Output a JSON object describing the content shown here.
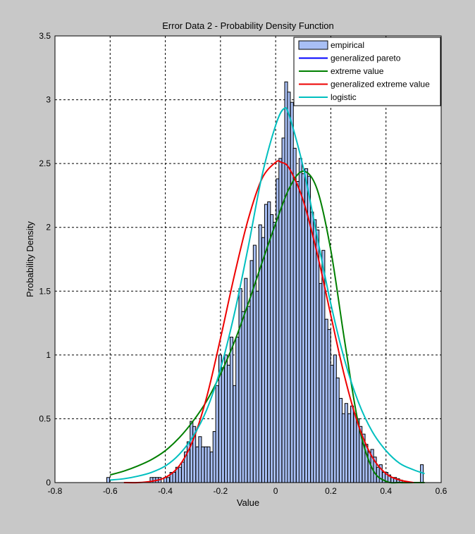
{
  "chart_data": {
    "type": "bar",
    "title": "Error Data 2 - Probability Density Function",
    "xlabel": "Value",
    "ylabel": "Probability Density",
    "xlim": [
      -0.8,
      0.6
    ],
    "ylim": [
      0,
      3.5
    ],
    "xticks": [
      "-0.8",
      "-0.6",
      "-0.4",
      "-0.2",
      "0",
      "0.2",
      "0.4",
      "0.6"
    ],
    "yticks": [
      "0",
      "0.5",
      "1",
      "1.5",
      "2",
      "2.5",
      "3",
      "3.5"
    ],
    "grid": true,
    "legend_position": "top-right",
    "histogram": {
      "name": "empirical",
      "color": "#a8bff5",
      "edge_color": "#000000",
      "bin_width": 0.0104,
      "bins": [
        [
          -0.607,
          0.04
        ],
        [
          -0.45,
          0.04
        ],
        [
          -0.44,
          0.04
        ],
        [
          -0.43,
          0.04
        ],
        [
          -0.42,
          0.04
        ],
        [
          -0.4,
          0.04
        ],
        [
          -0.39,
          0.04
        ],
        [
          -0.378,
          0.08
        ],
        [
          -0.368,
          0.08
        ],
        [
          -0.357,
          0.12
        ],
        [
          -0.347,
          0.12
        ],
        [
          -0.336,
          0.16
        ],
        [
          -0.326,
          0.24
        ],
        [
          -0.316,
          0.32
        ],
        [
          -0.305,
          0.48
        ],
        [
          -0.295,
          0.44
        ],
        [
          -0.284,
          0.28
        ],
        [
          -0.274,
          0.36
        ],
        [
          -0.264,
          0.28
        ],
        [
          -0.253,
          0.28
        ],
        [
          -0.243,
          0.28
        ],
        [
          -0.232,
          0.24
        ],
        [
          -0.222,
          0.4
        ],
        [
          -0.212,
          0.76
        ],
        [
          -0.201,
          1.0
        ],
        [
          -0.191,
          0.9
        ],
        [
          -0.18,
          1.0
        ],
        [
          -0.17,
          0.92
        ],
        [
          -0.16,
          1.14
        ],
        [
          -0.149,
          0.76
        ],
        [
          -0.139,
          1.14
        ],
        [
          -0.128,
          1.52
        ],
        [
          -0.118,
          1.34
        ],
        [
          -0.108,
          1.6
        ],
        [
          -0.097,
          1.38
        ],
        [
          -0.087,
          1.74
        ],
        [
          -0.076,
          1.86
        ],
        [
          -0.066,
          1.5
        ],
        [
          -0.056,
          2.02
        ],
        [
          -0.045,
          1.92
        ],
        [
          -0.035,
          2.18
        ],
        [
          -0.024,
          2.2
        ],
        [
          -0.014,
          2.1
        ],
        [
          -0.004,
          2.04
        ],
        [
          0.007,
          2.38
        ],
        [
          0.017,
          2.54
        ],
        [
          0.028,
          2.7
        ],
        [
          0.038,
          3.14
        ],
        [
          0.048,
          3.06
        ],
        [
          0.059,
          2.98
        ],
        [
          0.069,
          2.62
        ],
        [
          0.08,
          2.36
        ],
        [
          0.09,
          2.54
        ],
        [
          0.1,
          2.42
        ],
        [
          0.111,
          2.46
        ],
        [
          0.121,
          2.4
        ],
        [
          0.132,
          2.12
        ],
        [
          0.142,
          2.06
        ],
        [
          0.152,
          1.98
        ],
        [
          0.163,
          1.56
        ],
        [
          0.173,
          1.82
        ],
        [
          0.184,
          1.28
        ],
        [
          0.194,
          1.2
        ],
        [
          0.204,
          0.92
        ],
        [
          0.215,
          1.0
        ],
        [
          0.225,
          0.82
        ],
        [
          0.236,
          0.66
        ],
        [
          0.246,
          0.54
        ],
        [
          0.256,
          0.62
        ],
        [
          0.267,
          0.54
        ],
        [
          0.277,
          0.6
        ],
        [
          0.288,
          0.54
        ],
        [
          0.298,
          0.5
        ],
        [
          0.308,
          0.44
        ],
        [
          0.319,
          0.38
        ],
        [
          0.329,
          0.3
        ],
        [
          0.34,
          0.24
        ],
        [
          0.35,
          0.26
        ],
        [
          0.36,
          0.2
        ],
        [
          0.371,
          0.12
        ],
        [
          0.381,
          0.14
        ],
        [
          0.392,
          0.08
        ],
        [
          0.402,
          0.08
        ],
        [
          0.412,
          0.06
        ],
        [
          0.423,
          0.04
        ],
        [
          0.433,
          0.04
        ],
        [
          0.444,
          0.03
        ],
        [
          0.454,
          0.02
        ],
        [
          0.53,
          0.14
        ]
      ]
    },
    "series": [
      {
        "name": "generalized pareto",
        "color": "#0000ff",
        "x": [],
        "y": []
      },
      {
        "name": "extreme value",
        "color": "#007f00",
        "x": [
          -0.6,
          -0.55,
          -0.5,
          -0.45,
          -0.4,
          -0.35,
          -0.3,
          -0.25,
          -0.2,
          -0.15,
          -0.1,
          -0.05,
          0.0,
          0.05,
          0.1,
          0.15,
          0.2,
          0.25,
          0.3,
          0.35,
          0.4,
          0.45,
          0.5,
          0.54
        ],
        "y": [
          0.06,
          0.09,
          0.13,
          0.18,
          0.25,
          0.35,
          0.48,
          0.64,
          0.85,
          1.1,
          1.4,
          1.72,
          2.03,
          2.31,
          2.44,
          2.3,
          1.82,
          1.11,
          0.46,
          0.11,
          0.01,
          0.0,
          0.0,
          0.0
        ]
      },
      {
        "name": "generalized extreme value",
        "color": "#ee0000",
        "x": [
          -0.55,
          -0.5,
          -0.45,
          -0.4,
          -0.35,
          -0.3,
          -0.25,
          -0.2,
          -0.15,
          -0.1,
          -0.05,
          0.0,
          0.02,
          0.05,
          0.1,
          0.15,
          0.2,
          0.25,
          0.3,
          0.35,
          0.4,
          0.45,
          0.5
        ],
        "y": [
          0.0,
          0.0,
          0.01,
          0.04,
          0.13,
          0.33,
          0.67,
          1.13,
          1.62,
          2.06,
          2.38,
          2.51,
          2.51,
          2.46,
          2.21,
          1.8,
          1.31,
          0.83,
          0.45,
          0.2,
          0.07,
          0.02,
          0.0
        ]
      },
      {
        "name": "logistic",
        "color": "#00bfbf",
        "x": [
          -0.6,
          -0.55,
          -0.5,
          -0.45,
          -0.4,
          -0.35,
          -0.3,
          -0.25,
          -0.2,
          -0.15,
          -0.1,
          -0.05,
          0.0,
          0.03,
          0.05,
          0.1,
          0.15,
          0.2,
          0.25,
          0.3,
          0.35,
          0.4,
          0.45,
          0.5,
          0.54
        ],
        "y": [
          0.02,
          0.03,
          0.05,
          0.08,
          0.13,
          0.22,
          0.36,
          0.57,
          0.89,
          1.32,
          1.84,
          2.4,
          2.8,
          2.93,
          2.87,
          2.47,
          1.93,
          1.4,
          0.96,
          0.63,
          0.4,
          0.25,
          0.15,
          0.1,
          0.07
        ]
      }
    ]
  }
}
